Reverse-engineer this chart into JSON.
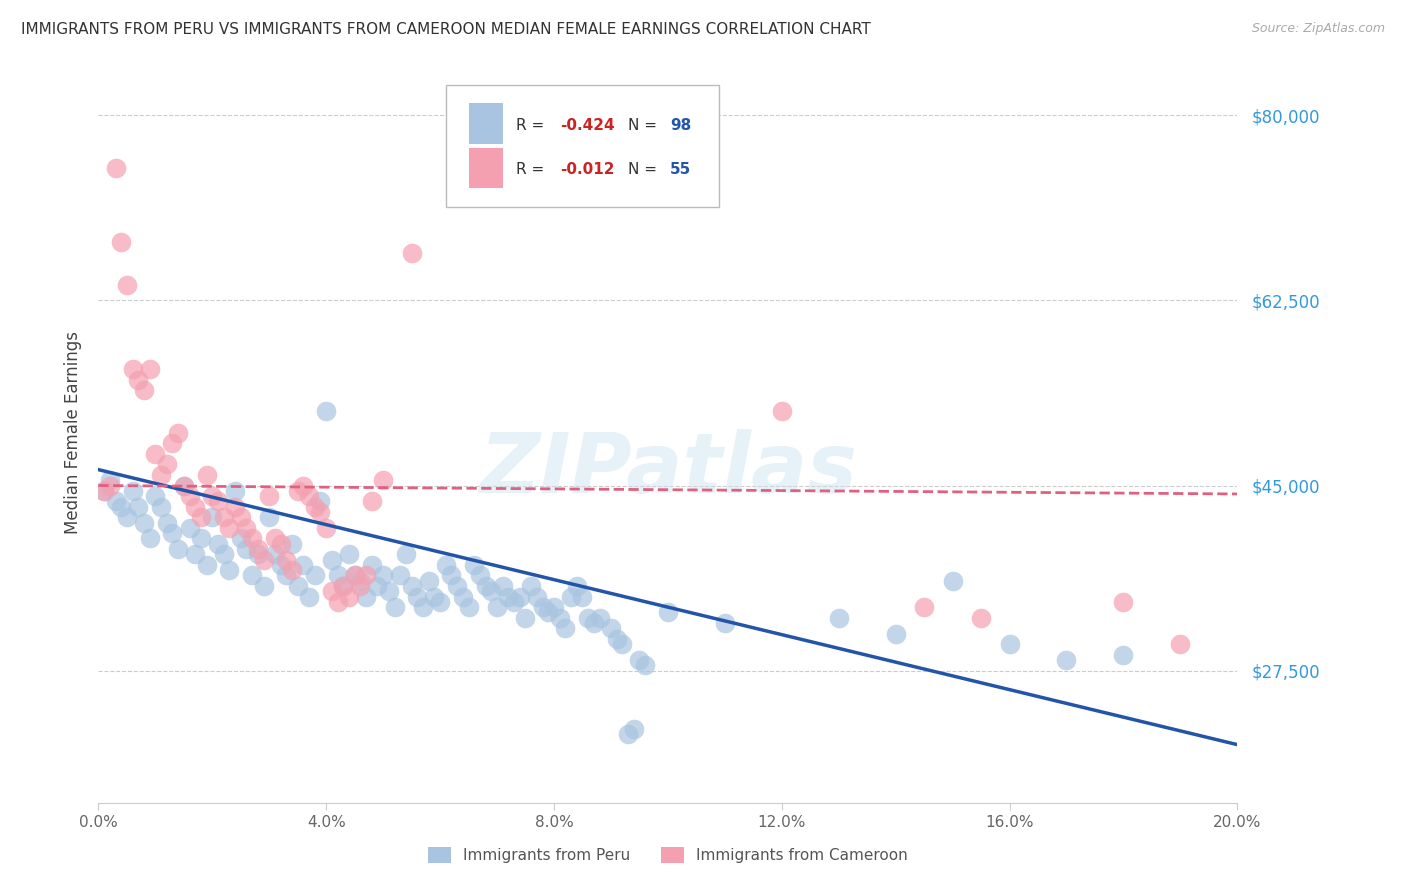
{
  "title": "IMMIGRANTS FROM PERU VS IMMIGRANTS FROM CAMEROON MEDIAN FEMALE EARNINGS CORRELATION CHART",
  "source": "Source: ZipAtlas.com",
  "ylabel": "Median Female Earnings",
  "y_ticks": [
    27500,
    45000,
    62500,
    80000
  ],
  "y_tick_labels": [
    "$27,500",
    "$45,000",
    "$62,500",
    "$80,000"
  ],
  "x_min": 0.0,
  "x_max": 0.2,
  "y_min": 15000,
  "y_max": 85000,
  "watermark": "ZIPatlas",
  "color_peru": "#a8c4e0",
  "color_peru_line": "#2255aa",
  "color_cameroon": "#f4a0b0",
  "color_cameroon_line": "#e06080",
  "color_r_value": "#cc2222",
  "color_n_value": "#2255aa",
  "color_ytick": "#3399dd",
  "peru_points": [
    [
      0.001,
      44500
    ],
    [
      0.002,
      45500
    ],
    [
      0.003,
      43500
    ],
    [
      0.004,
      43000
    ],
    [
      0.005,
      42000
    ],
    [
      0.006,
      44500
    ],
    [
      0.007,
      43000
    ],
    [
      0.008,
      41500
    ],
    [
      0.009,
      40000
    ],
    [
      0.01,
      44000
    ],
    [
      0.011,
      43000
    ],
    [
      0.012,
      41500
    ],
    [
      0.013,
      40500
    ],
    [
      0.014,
      39000
    ],
    [
      0.015,
      45000
    ],
    [
      0.016,
      41000
    ],
    [
      0.017,
      38500
    ],
    [
      0.018,
      40000
    ],
    [
      0.019,
      37500
    ],
    [
      0.02,
      42000
    ],
    [
      0.021,
      39500
    ],
    [
      0.022,
      38500
    ],
    [
      0.023,
      37000
    ],
    [
      0.024,
      44500
    ],
    [
      0.025,
      40000
    ],
    [
      0.026,
      39000
    ],
    [
      0.027,
      36500
    ],
    [
      0.028,
      38500
    ],
    [
      0.029,
      35500
    ],
    [
      0.03,
      42000
    ],
    [
      0.031,
      38500
    ],
    [
      0.032,
      37500
    ],
    [
      0.033,
      36500
    ],
    [
      0.034,
      39500
    ],
    [
      0.035,
      35500
    ],
    [
      0.036,
      37500
    ],
    [
      0.037,
      34500
    ],
    [
      0.038,
      36500
    ],
    [
      0.039,
      43500
    ],
    [
      0.04,
      52000
    ],
    [
      0.041,
      38000
    ],
    [
      0.042,
      36500
    ],
    [
      0.043,
      35500
    ],
    [
      0.044,
      38500
    ],
    [
      0.045,
      36500
    ],
    [
      0.046,
      36000
    ],
    [
      0.047,
      34500
    ],
    [
      0.048,
      37500
    ],
    [
      0.049,
      35500
    ],
    [
      0.05,
      36500
    ],
    [
      0.051,
      35000
    ],
    [
      0.052,
      33500
    ],
    [
      0.053,
      36500
    ],
    [
      0.054,
      38500
    ],
    [
      0.055,
      35500
    ],
    [
      0.056,
      34500
    ],
    [
      0.057,
      33500
    ],
    [
      0.058,
      36000
    ],
    [
      0.059,
      34500
    ],
    [
      0.06,
      34000
    ],
    [
      0.061,
      37500
    ],
    [
      0.062,
      36500
    ],
    [
      0.063,
      35500
    ],
    [
      0.064,
      34500
    ],
    [
      0.065,
      33500
    ],
    [
      0.066,
      37500
    ],
    [
      0.067,
      36500
    ],
    [
      0.068,
      35500
    ],
    [
      0.069,
      35000
    ],
    [
      0.07,
      33500
    ],
    [
      0.071,
      35500
    ],
    [
      0.072,
      34500
    ],
    [
      0.073,
      34000
    ],
    [
      0.074,
      34500
    ],
    [
      0.075,
      32500
    ],
    [
      0.076,
      35500
    ],
    [
      0.077,
      34500
    ],
    [
      0.078,
      33500
    ],
    [
      0.079,
      33000
    ],
    [
      0.08,
      33500
    ],
    [
      0.081,
      32500
    ],
    [
      0.082,
      31500
    ],
    [
      0.083,
      34500
    ],
    [
      0.084,
      35500
    ],
    [
      0.085,
      34500
    ],
    [
      0.086,
      32500
    ],
    [
      0.087,
      32000
    ],
    [
      0.088,
      32500
    ],
    [
      0.09,
      31500
    ],
    [
      0.091,
      30500
    ],
    [
      0.092,
      30000
    ],
    [
      0.093,
      21500
    ],
    [
      0.094,
      22000
    ],
    [
      0.095,
      28500
    ],
    [
      0.096,
      28000
    ],
    [
      0.1,
      33000
    ],
    [
      0.11,
      32000
    ],
    [
      0.13,
      32500
    ],
    [
      0.14,
      31000
    ],
    [
      0.15,
      36000
    ],
    [
      0.16,
      30000
    ],
    [
      0.17,
      28500
    ],
    [
      0.18,
      29000
    ]
  ],
  "cameroon_points": [
    [
      0.001,
      44500
    ],
    [
      0.002,
      45000
    ],
    [
      0.003,
      75000
    ],
    [
      0.004,
      68000
    ],
    [
      0.005,
      64000
    ],
    [
      0.006,
      56000
    ],
    [
      0.007,
      55000
    ],
    [
      0.008,
      54000
    ],
    [
      0.009,
      56000
    ],
    [
      0.01,
      48000
    ],
    [
      0.011,
      46000
    ],
    [
      0.012,
      47000
    ],
    [
      0.013,
      49000
    ],
    [
      0.014,
      50000
    ],
    [
      0.015,
      45000
    ],
    [
      0.016,
      44000
    ],
    [
      0.017,
      43000
    ],
    [
      0.018,
      42000
    ],
    [
      0.019,
      46000
    ],
    [
      0.02,
      44000
    ],
    [
      0.021,
      43500
    ],
    [
      0.022,
      42000
    ],
    [
      0.023,
      41000
    ],
    [
      0.024,
      43000
    ],
    [
      0.025,
      42000
    ],
    [
      0.026,
      41000
    ],
    [
      0.027,
      40000
    ],
    [
      0.028,
      39000
    ],
    [
      0.029,
      38000
    ],
    [
      0.03,
      44000
    ],
    [
      0.031,
      40000
    ],
    [
      0.032,
      39500
    ],
    [
      0.033,
      38000
    ],
    [
      0.034,
      37000
    ],
    [
      0.035,
      44500
    ],
    [
      0.036,
      45000
    ],
    [
      0.037,
      44000
    ],
    [
      0.038,
      43000
    ],
    [
      0.039,
      42500
    ],
    [
      0.04,
      41000
    ],
    [
      0.041,
      35000
    ],
    [
      0.042,
      34000
    ],
    [
      0.043,
      35500
    ],
    [
      0.044,
      34500
    ],
    [
      0.045,
      36500
    ],
    [
      0.046,
      35500
    ],
    [
      0.047,
      36500
    ],
    [
      0.048,
      43500
    ],
    [
      0.055,
      67000
    ],
    [
      0.05,
      45500
    ],
    [
      0.12,
      52000
    ],
    [
      0.145,
      33500
    ],
    [
      0.155,
      32500
    ],
    [
      0.18,
      34000
    ],
    [
      0.19,
      30000
    ]
  ],
  "peru_trend_x": [
    0.0,
    0.2
  ],
  "peru_trend_y": [
    46500,
    20500
  ],
  "cameroon_trend_x": [
    0.0,
    0.2
  ],
  "cameroon_trend_y": [
    45000,
    44200
  ],
  "x_tick_vals": [
    0.0,
    0.04,
    0.08,
    0.12,
    0.16,
    0.2
  ],
  "x_tick_labels": [
    "0.0%",
    "4.0%",
    "8.0%",
    "12.0%",
    "16.0%",
    "20.0%"
  ]
}
